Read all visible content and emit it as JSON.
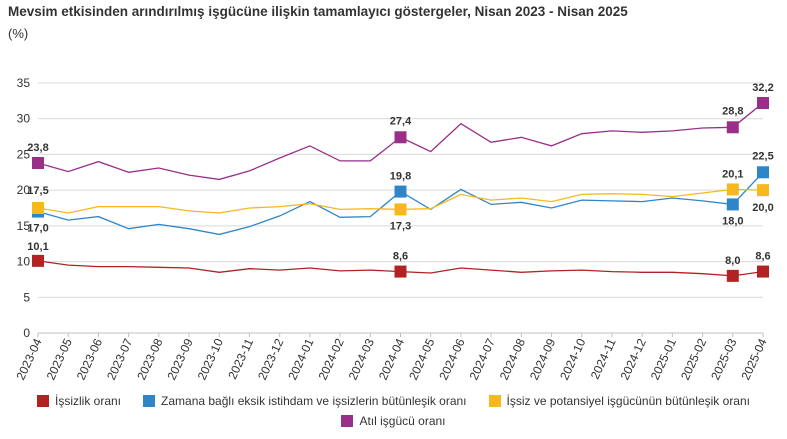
{
  "header": {
    "title": "Mevsim etkisinden arındırılmış işgücüne ilişkin tamamlayıcı göstergeler, Nisan 2023 - Nisan 2025",
    "unit": "(%)"
  },
  "chart_data": {
    "type": "line",
    "title": "Mevsim etkisinden arındırılmış işgücüne ilişkin tamamlayıcı göstergeler, Nisan 2023 - Nisan 2025",
    "ylabel": "(%)",
    "ylim": [
      0,
      35
    ],
    "yticks": [
      0,
      5,
      10,
      15,
      20,
      25,
      30,
      35
    ],
    "grid": true,
    "legend_position": "bottom",
    "categories": [
      "2023-04",
      "2023-05",
      "2023-06",
      "2023-07",
      "2023-08",
      "2023-09",
      "2023-10",
      "2023-11",
      "2023-12",
      "2024-01",
      "2024-02",
      "2024-03",
      "2024-04",
      "2024-05",
      "2024-06",
      "2024-07",
      "2024-08",
      "2024-09",
      "2024-10",
      "2024-11",
      "2024-12",
      "2025-01",
      "2025-02",
      "2025-03",
      "2025-04"
    ],
    "series": [
      {
        "name": "İşsizlik oranı",
        "color": "#b22222",
        "values": [
          10.1,
          9.5,
          9.3,
          9.3,
          9.2,
          9.1,
          8.5,
          9.0,
          8.8,
          9.1,
          8.7,
          8.8,
          8.6,
          8.4,
          9.1,
          8.8,
          8.5,
          8.7,
          8.8,
          8.6,
          8.5,
          8.5,
          8.3,
          8.0,
          8.6
        ]
      },
      {
        "name": "Zamana bağlı eksik istihdam ve işsizlerin bütünleşik oranı",
        "color": "#2e86c9",
        "values": [
          17.0,
          15.8,
          16.3,
          14.6,
          15.2,
          14.6,
          13.8,
          14.9,
          16.4,
          18.4,
          16.2,
          16.3,
          19.8,
          17.3,
          20.1,
          18.0,
          18.3,
          17.5,
          18.6,
          18.5,
          18.4,
          18.9,
          18.5,
          18.0,
          22.5
        ]
      },
      {
        "name": "İşsiz ve potansiyel işgücünün bütünleşik oranı",
        "color": "#f7b81e",
        "values": [
          17.5,
          16.8,
          17.7,
          17.7,
          17.7,
          17.1,
          16.8,
          17.5,
          17.7,
          18.1,
          17.3,
          17.4,
          17.3,
          17.4,
          19.4,
          18.6,
          18.9,
          18.4,
          19.4,
          19.5,
          19.4,
          19.1,
          19.6,
          20.1,
          20.0
        ]
      },
      {
        "name": "Atıl işgücü oranı",
        "color": "#992f88",
        "values": [
          23.8,
          22.6,
          24.0,
          22.5,
          23.1,
          22.1,
          21.5,
          22.7,
          24.5,
          26.2,
          24.1,
          24.1,
          27.4,
          25.4,
          29.3,
          26.7,
          27.4,
          26.2,
          27.9,
          28.3,
          28.1,
          28.3,
          28.7,
          28.8,
          32.2
        ]
      }
    ],
    "highlighted_points": [
      {
        "series": 0,
        "index": 0,
        "label": "10,1"
      },
      {
        "series": 0,
        "index": 12,
        "label": "8,6"
      },
      {
        "series": 0,
        "index": 23,
        "label": "8,0"
      },
      {
        "series": 0,
        "index": 24,
        "label": "8,6"
      },
      {
        "series": 1,
        "index": 0,
        "label": "17,0"
      },
      {
        "series": 1,
        "index": 12,
        "label": "19,8"
      },
      {
        "series": 1,
        "index": 23,
        "label": "18,0"
      },
      {
        "series": 1,
        "index": 24,
        "label": "22,5"
      },
      {
        "series": 2,
        "index": 0,
        "label": "17,5"
      },
      {
        "series": 2,
        "index": 12,
        "label": "17,3"
      },
      {
        "series": 2,
        "index": 23,
        "label": "20,1"
      },
      {
        "series": 2,
        "index": 24,
        "label": "20,0"
      },
      {
        "series": 3,
        "index": 0,
        "label": "23,8"
      },
      {
        "series": 3,
        "index": 12,
        "label": "27,4"
      },
      {
        "series": 3,
        "index": 23,
        "label": "28,8"
      },
      {
        "series": 3,
        "index": 24,
        "label": "32,2"
      }
    ]
  }
}
